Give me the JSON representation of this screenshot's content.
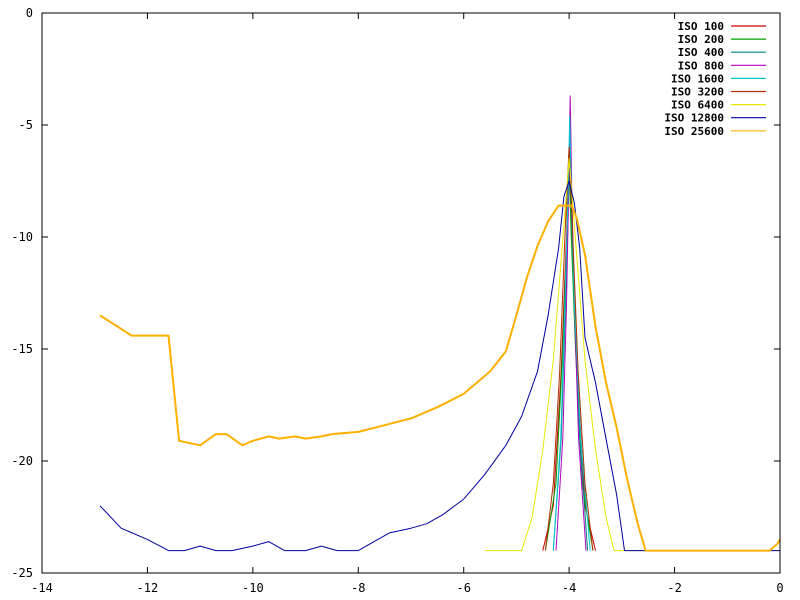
{
  "chart_data": {
    "type": "line",
    "title": "",
    "xlabel": "",
    "ylabel": "",
    "xlim": [
      -14,
      0
    ],
    "ylim": [
      -25,
      0
    ],
    "xticks": [
      -14,
      -12,
      -10,
      -8,
      -6,
      -4,
      -2,
      0
    ],
    "yticks": [
      0,
      -5,
      -10,
      -15,
      -20,
      -25
    ],
    "xtick_labels": [
      "-14",
      "-12",
      "-10",
      "-8",
      "-6",
      "-4",
      "-2",
      "0"
    ],
    "ytick_labels": [
      "0",
      "-5",
      "-10",
      "-15",
      "-20",
      "-25"
    ],
    "grid": false,
    "legend_position": "top-right",
    "series": [
      {
        "name": "ISO 100",
        "color": "#cc0000",
        "x": [
          -4.5,
          -4.3,
          -4.15,
          -4.05,
          -4.0,
          -3.95,
          -3.85,
          -3.7,
          -3.5
        ],
        "y": [
          -24,
          -22,
          -16,
          -10,
          -6,
          -10,
          -16,
          -22,
          -24
        ]
      },
      {
        "name": "ISO 200",
        "color": "#00a000",
        "x": [
          -4.45,
          -4.25,
          -4.12,
          -4.04,
          -4.0,
          -3.96,
          -3.88,
          -3.75,
          -3.55
        ],
        "y": [
          -24,
          -21,
          -15,
          -10,
          -7,
          -10,
          -15,
          -21,
          -24
        ]
      },
      {
        "name": "ISO 400",
        "color": "#008080",
        "x": [
          -4.3,
          -4.15,
          -4.07,
          -4.02,
          -3.99,
          -3.96,
          -3.9,
          -3.8,
          -3.65
        ],
        "y": [
          -24,
          -19,
          -13,
          -9,
          -5.5,
          -9,
          -13,
          -19,
          -24
        ]
      },
      {
        "name": "ISO 800",
        "color": "#b000c0",
        "x": [
          -4.25,
          -4.12,
          -4.05,
          -4.01,
          -3.98,
          -3.95,
          -3.9,
          -3.82,
          -3.68
        ],
        "y": [
          -24,
          -19,
          -13,
          -8,
          -3.7,
          -8,
          -13,
          -19,
          -24
        ]
      },
      {
        "name": "ISO 1600",
        "color": "#00c8d0",
        "x": [
          -4.3,
          -4.16,
          -4.08,
          -4.02,
          -3.99,
          -3.96,
          -3.9,
          -3.78,
          -3.6
        ],
        "y": [
          -24,
          -19,
          -13,
          -8,
          -4.6,
          -8,
          -13,
          -19,
          -24
        ]
      },
      {
        "name": "ISO 3200",
        "color": "#b03000",
        "x": [
          -4.45,
          -4.3,
          -4.18,
          -4.08,
          -4.0,
          -3.93,
          -3.83,
          -3.7,
          -3.55
        ],
        "y": [
          -24,
          -21,
          -16,
          -10,
          -6,
          -10,
          -16,
          -21,
          -24
        ]
      },
      {
        "name": "ISO 6400",
        "color": "#e8e800",
        "x": [
          -5.6,
          -4.9,
          -4.7,
          -4.5,
          -4.3,
          -4.15,
          -4.05,
          -4.0,
          -3.95,
          -3.85,
          -3.7,
          -3.5,
          -3.3,
          -3.15,
          0
        ],
        "y": [
          -24,
          -24,
          -22.5,
          -19.5,
          -15.5,
          -11,
          -8,
          -6.5,
          -8,
          -11,
          -15.5,
          -19.5,
          -22.5,
          -24,
          -24
        ]
      },
      {
        "name": "ISO 12800",
        "color": "#0000a0",
        "x": [
          -12.9,
          -12.5,
          -12.0,
          -11.6,
          -11.3,
          -11.0,
          -10.7,
          -10.4,
          -10.0,
          -9.7,
          -9.4,
          -9.0,
          -8.7,
          -8.4,
          -8.0,
          -7.7,
          -7.4,
          -7.0,
          -6.7,
          -6.4,
          -6.0,
          -5.6,
          -5.2,
          -4.9,
          -4.6,
          -4.4,
          -4.2,
          -4.1,
          -4.0,
          -3.9,
          -3.8,
          -3.7,
          -3.5,
          -3.3,
          -3.1,
          -2.95,
          -2.8,
          -0.3,
          0
        ],
        "y": [
          -22,
          -23,
          -23.5,
          -24,
          -24,
          -23.8,
          -24,
          -24,
          -23.8,
          -23.6,
          -24,
          -24,
          -23.8,
          -24,
          -24,
          -23.6,
          -23.2,
          -23,
          -22.8,
          -22.4,
          -21.7,
          -20.6,
          -19.3,
          -18,
          -16,
          -13.5,
          -10.5,
          -8.2,
          -7.5,
          -8.5,
          -10.5,
          -14.5,
          -16.5,
          -19,
          -21.5,
          -24,
          -24,
          -24,
          -24
        ]
      },
      {
        "name": "ISO 25600",
        "color": "#ffb000",
        "x": [
          -12.9,
          -12.3,
          -11.6,
          -11.4,
          -11.0,
          -10.7,
          -10.5,
          -10.2,
          -10.0,
          -9.7,
          -9.5,
          -9.2,
          -9.0,
          -8.7,
          -8.5,
          -8.0,
          -7.5,
          -7.0,
          -6.5,
          -6.0,
          -5.5,
          -5.2,
          -5.0,
          -4.8,
          -4.6,
          -4.4,
          -4.2,
          -4.05,
          -3.95,
          -3.85,
          -3.7,
          -3.5,
          -3.3,
          -3.1,
          -2.9,
          -2.7,
          -2.55,
          -2.45,
          -0.2,
          -0.05,
          0
        ],
        "y": [
          -13.5,
          -14.4,
          -14.4,
          -19.1,
          -19.3,
          -18.8,
          -18.8,
          -19.3,
          -19.1,
          -18.9,
          -19.0,
          -18.9,
          -19.0,
          -18.9,
          -18.8,
          -18.7,
          -18.4,
          -18.1,
          -17.6,
          -17.0,
          -16.0,
          -15.1,
          -13.5,
          -11.8,
          -10.4,
          -9.3,
          -8.6,
          -8.6,
          -8.6,
          -9.2,
          -10.8,
          -14.0,
          -16.5,
          -18.5,
          -20.8,
          -22.8,
          -24.0,
          -24.0,
          -24.0,
          -23.7,
          -23.5
        ]
      }
    ]
  }
}
